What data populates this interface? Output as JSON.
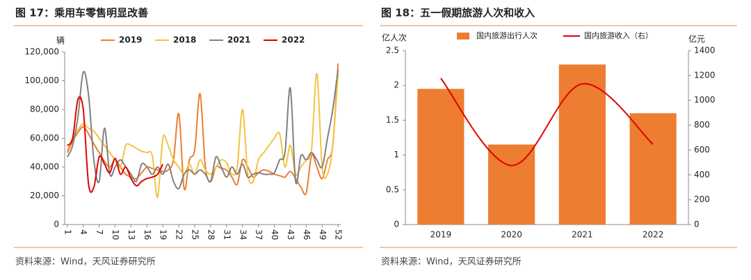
{
  "chart_data": [
    {
      "type": "line",
      "title": "图 17：乘用车零售明显改善",
      "ylabel": "辆",
      "source": "资料来源：Wind，天风证券研究所",
      "x": [
        1,
        2,
        3,
        4,
        5,
        6,
        7,
        8,
        9,
        10,
        11,
        12,
        13,
        14,
        15,
        16,
        17,
        18,
        19,
        20,
        21,
        22,
        23,
        24,
        25,
        26,
        27,
        28,
        29,
        30,
        31,
        32,
        33,
        34,
        35,
        36,
        37,
        38,
        39,
        40,
        41,
        42,
        43,
        44,
        45,
        46,
        47,
        48,
        49,
        50,
        51,
        52
      ],
      "xlim": [
        0.5,
        52.5
      ],
      "xticks": [
        1,
        4,
        7,
        10,
        13,
        16,
        19,
        22,
        25,
        28,
        31,
        34,
        37,
        40,
        43,
        46,
        49,
        52
      ],
      "ylim": [
        0,
        120000
      ],
      "yticks": [
        0,
        {
          "value": 20000,
          "label": "20,000"
        },
        {
          "value": 40000,
          "label": "40,000"
        },
        {
          "value": 60000,
          "label": "60,000"
        },
        {
          "value": 80000,
          "label": "80,000"
        },
        {
          "value": 100000,
          "label": "100,000"
        },
        {
          "value": 120000,
          "label": "120,000"
        }
      ],
      "grid": false,
      "legend": "top",
      "series": [
        {
          "name": "2019",
          "color": "#ED7D31",
          "values": [
            50000,
            58000,
            64000,
            68000,
            63000,
            56000,
            50000,
            44000,
            40000,
            45000,
            40000,
            35000,
            33000,
            32000,
            36000,
            40000,
            39000,
            38000,
            37000,
            38000,
            45000,
            77000,
            25000,
            45000,
            52000,
            91000,
            40000,
            30000,
            40000,
            39000,
            38000,
            33000,
            28000,
            45000,
            40000,
            33000,
            36000,
            38000,
            37000,
            35000,
            34000,
            33000,
            37000,
            32000,
            26000,
            22000,
            48000,
            40000,
            32000,
            45000,
            55000,
            112000
          ]
        },
        {
          "name": "2018",
          "color": "#F5C342",
          "values": [
            52000,
            60000,
            66000,
            70000,
            67000,
            65000,
            60000,
            55000,
            50000,
            45000,
            40000,
            55000,
            55000,
            53000,
            51000,
            50000,
            48000,
            19000,
            60000,
            55000,
            45000,
            40000,
            35000,
            42000,
            35000,
            45000,
            38000,
            35000,
            40000,
            45000,
            43000,
            35000,
            40000,
            80000,
            35000,
            30000,
            45000,
            50000,
            55000,
            60000,
            63000,
            40000,
            55000,
            35000,
            40000,
            45000,
            52000,
            105000,
            40000,
            35000,
            55000,
            105000
          ]
        },
        {
          "name": "2021",
          "color": "#808080",
          "values": [
            47000,
            55000,
            75000,
            106000,
            90000,
            45000,
            30000,
            67000,
            35000,
            40000,
            45000,
            40000,
            35000,
            30000,
            42000,
            40000,
            35000,
            40000,
            35000,
            42000,
            30000,
            25000,
            35000,
            38000,
            35000,
            38000,
            35000,
            30000,
            47000,
            40000,
            33000,
            40000,
            35000,
            42000,
            33000,
            35000,
            36000,
            35000,
            35000,
            36000,
            45000,
            50000,
            95000,
            30000,
            48000,
            45000,
            50000,
            45000,
            40000,
            60000,
            80000,
            108000
          ]
        },
        {
          "name": "2022",
          "color": "#E00000",
          "values": [
            55000,
            60000,
            87000,
            80000,
            28000,
            26000,
            47000,
            42000,
            36000,
            46000,
            35000,
            40000,
            32000,
            27000,
            30000,
            32000,
            33000,
            35000,
            42000,
            null,
            null,
            null,
            null,
            null,
            null,
            null,
            null,
            null,
            null,
            null,
            null,
            null,
            null,
            null,
            null,
            null,
            null,
            null,
            null,
            null,
            null,
            null,
            null,
            null,
            null,
            null,
            null,
            null,
            null,
            null,
            null,
            null
          ]
        }
      ]
    },
    {
      "type": "bar",
      "title": "图 18：五一假期旅游人次和收入",
      "ylabel": "亿人次",
      "y2label": "亿元",
      "source": "资料来源：Wind，天风证券研究所",
      "categories": [
        "2019",
        "2020",
        "2021",
        "2022"
      ],
      "ylim": [
        0,
        2.5
      ],
      "yticks": [
        0,
        0.5,
        1,
        1.5,
        2,
        2.5
      ],
      "y2lim": [
        0,
        1400
      ],
      "y2ticks": [
        0,
        200,
        400,
        600,
        800,
        1000,
        1200,
        1400
      ],
      "grid": false,
      "legend": "top",
      "series": [
        {
          "name": "国内旅游出行人次",
          "color": "#ED7D31",
          "values": [
            1.95,
            1.15,
            2.3,
            1.6
          ]
        },
        {
          "name": "国内旅游收入（右）",
          "color": "#E00000",
          "type": "line",
          "axis": "y2",
          "values": [
            1177,
            475,
            1132,
            646
          ]
        }
      ]
    }
  ]
}
